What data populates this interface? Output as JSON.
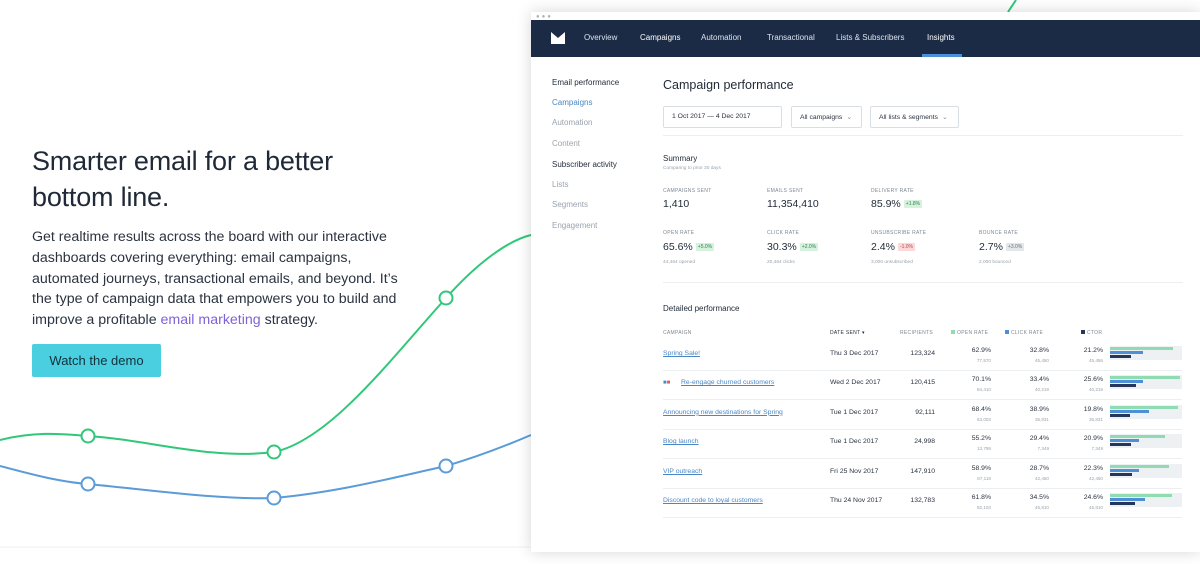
{
  "hero": {
    "title_line1": "Smarter email for a better",
    "title_line2": "bottom line.",
    "body_before_link": "Get realtime results across the board with our interactive dashboards covering everything: email campaigns, automated journeys, transactional emails, and beyond. It’s the type of campaign data that empowers you to build and improve a profitable ",
    "body_link": "email marketing",
    "body_after_link": " strategy.",
    "cta_label": "Watch the demo",
    "link_color": "#7f62d6",
    "cta_color": "#49cfe0"
  },
  "nav": {
    "items": [
      "Overview",
      "Campaigns",
      "Automation",
      "Transactional",
      "Lists & Subscribers",
      "Insights"
    ],
    "active": "Insights",
    "background": "#1c2b45"
  },
  "sidebar": {
    "heading1": "Email performance",
    "campaigns": "Campaigns",
    "automation": "Automation",
    "content": "Content",
    "heading2": "Subscriber activity",
    "lists": "Lists",
    "segments": "Segments",
    "engagement": "Engagement"
  },
  "main": {
    "title": "Campaign performance",
    "date_range": "1 Oct 2017 — 4 Dec 2017",
    "campaign_filter": "All campaigns",
    "list_filter": "All lists & segments"
  },
  "summary": {
    "title": "Summary",
    "subtitle": "Comparing to prior 30 days",
    "campaigns_sent": {
      "label": "CAMPAIGNS SENT",
      "value": "1,410"
    },
    "emails_sent": {
      "label": "EMAILS SENT",
      "value": "11,354,410"
    },
    "delivery_rate": {
      "label": "DELIVERY RATE",
      "value": "85.9%",
      "delta": "+1.8%"
    },
    "open_rate": {
      "label": "OPEN RATE",
      "value": "65.6%",
      "delta": "+5.0%",
      "sub": "44,464 opened"
    },
    "click_rate": {
      "label": "CLICK RATE",
      "value": "30.3%",
      "delta": "+2.0%",
      "sub": "20,464 clicks"
    },
    "unsubscribe_rate": {
      "label": "UNSUBSCRIBE RATE",
      "value": "2.4%",
      "delta": "-1.0%",
      "sub": "3,000 unsubscribed"
    },
    "bounce_rate": {
      "label": "BOUNCE RATE",
      "value": "2.7%",
      "delta": "+3.0%",
      "sub": "2,000 bounced"
    }
  },
  "detailed": {
    "title": "Detailed performance",
    "headers": {
      "campaign": "CAMPAIGN",
      "date_sent": "DATE SENT ▾",
      "recipients": "RECIPIENTS",
      "open_rate": "OPEN RATE",
      "click_rate": "CLICK RATE",
      "ctor": "CTOR"
    },
    "colors": {
      "open": "#8fdcb2",
      "click": "#4f8fd8",
      "ctor": "#26355a"
    },
    "rows": [
      {
        "campaign": "Spring Sale!",
        "date": "Thu 3 Dec 2017",
        "recipients": "123,324",
        "open": "62.9%",
        "open_sub": "77,570",
        "click": "32.8%",
        "click_sub": "45,450",
        "ctor": "21.2%",
        "ctor_sub": "45,456",
        "tags": false,
        "open_val": 0.629,
        "click_val": 0.328,
        "ctor_val": 0.212
      },
      {
        "campaign": "Re-engage churned customers",
        "date": "Wed 2 Dec 2017",
        "recipients": "120,415",
        "open": "70.1%",
        "open_sub": "84,410",
        "click": "33.4%",
        "click_sub": "40,219",
        "ctor": "25.6%",
        "ctor_sub": "40,219",
        "tags": true,
        "open_val": 0.701,
        "click_val": 0.334,
        "ctor_val": 0.256
      },
      {
        "campaign": "Announcing new destinations for Spring",
        "date": "Tue 1 Dec 2017",
        "recipients": "92,111",
        "open": "68.4%",
        "open_sub": "63,003",
        "click": "38.9%",
        "click_sub": "35,831",
        "ctor": "19.8%",
        "ctor_sub": "35,831",
        "tags": false,
        "open_val": 0.684,
        "click_val": 0.389,
        "ctor_val": 0.198
      },
      {
        "campaign": "Blog launch",
        "date": "Tue 1 Dec 2017",
        "recipients": "24,998",
        "open": "55.2%",
        "open_sub": "13,799",
        "click": "29.4%",
        "click_sub": "7,349",
        "ctor": "20.9%",
        "ctor_sub": "7,349",
        "tags": false,
        "open_val": 0.552,
        "click_val": 0.294,
        "ctor_val": 0.209
      },
      {
        "campaign": "VIP outreach",
        "date": "Fri 25 Nov 2017",
        "recipients": "147,910",
        "open": "58.9%",
        "open_sub": "87,118",
        "click": "28.7%",
        "click_sub": "42,450",
        "ctor": "22.3%",
        "ctor_sub": "42,450",
        "tags": false,
        "open_val": 0.589,
        "click_val": 0.287,
        "ctor_val": 0.223
      },
      {
        "campaign": "Discount code to loyal customers",
        "date": "Thu 24 Nov 2017",
        "recipients": "132,783",
        "open": "61.8%",
        "open_sub": "82,103",
        "click": "34.5%",
        "click_sub": "45,810",
        "ctor": "24.6%",
        "ctor_sub": "45,810",
        "tags": false,
        "open_val": 0.618,
        "click_val": 0.345,
        "ctor_val": 0.246
      }
    ]
  },
  "decor": {
    "green_line": "#2fc878",
    "blue_line": "#5b9bd8"
  }
}
